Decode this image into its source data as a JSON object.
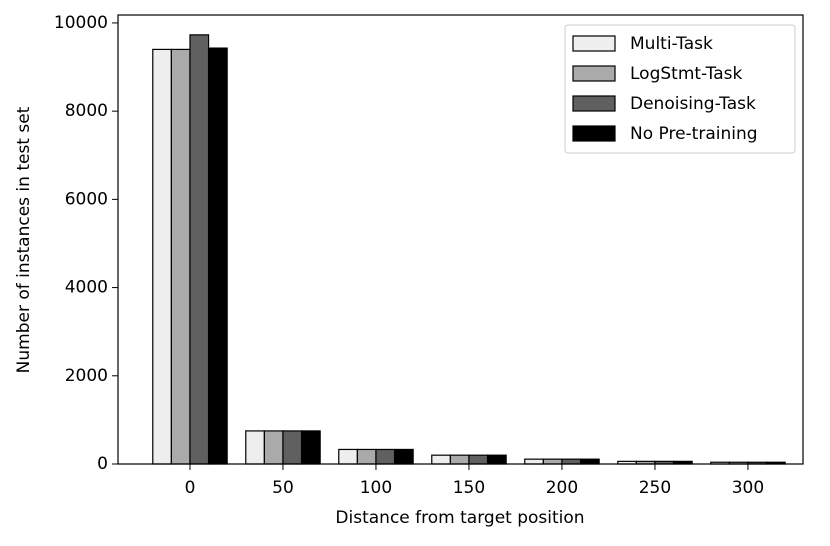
{
  "chart_data": {
    "type": "bar",
    "xlabel": "Distance from target position",
    "ylabel": "Number of instances in test set",
    "x": [
      0,
      50,
      100,
      150,
      200,
      250,
      300
    ],
    "xlim": [
      -38.7,
      329.6
    ],
    "xticks": [
      0,
      50,
      100,
      150,
      200,
      250,
      300
    ],
    "ylim": [
      0,
      10180
    ],
    "yticks": [
      0,
      2000,
      4000,
      6000,
      8000,
      10000
    ],
    "legend": "upper right",
    "series": [
      {
        "name": "Multi-Task",
        "color": "#eeeeee",
        "values": [
          9400,
          750,
          330,
          200,
          110,
          60,
          40
        ]
      },
      {
        "name": "LogStmt-Task",
        "color": "#aaaaaa",
        "values": [
          9400,
          750,
          330,
          200,
          110,
          60,
          40
        ]
      },
      {
        "name": "Denoising-Task",
        "color": "#606060",
        "values": [
          9730,
          750,
          330,
          200,
          110,
          60,
          40
        ]
      },
      {
        "name": "No Pre-training",
        "color": "#000000",
        "values": [
          9430,
          750,
          330,
          200,
          110,
          60,
          40
        ]
      }
    ]
  }
}
